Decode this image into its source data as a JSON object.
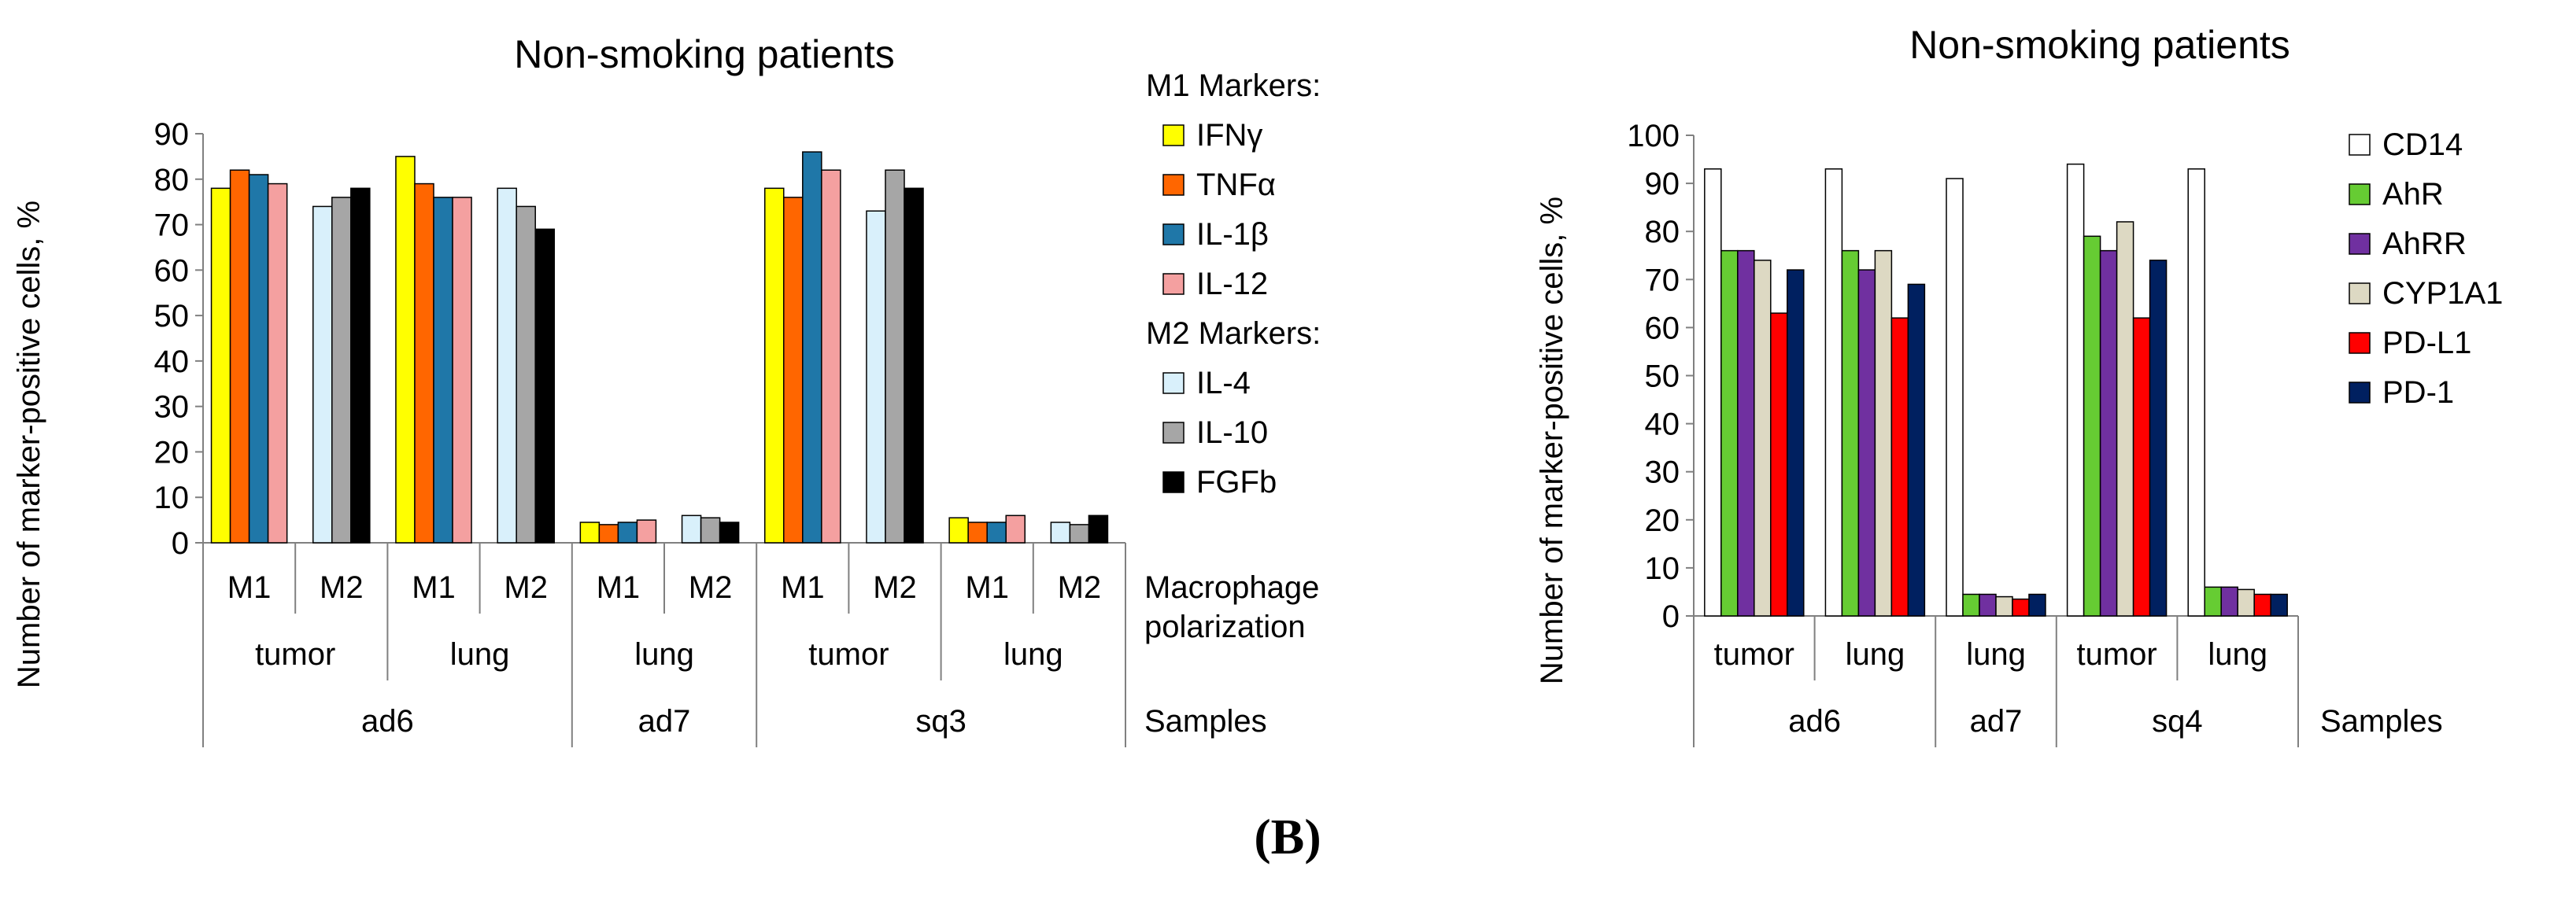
{
  "panel_label": "(B)",
  "chart_data": [
    {
      "type": "bar",
      "title": "Non-smoking patients",
      "ylabel": "Number of marker-positive cells, %",
      "ylim": [
        0,
        90
      ],
      "yticks": [
        0,
        10,
        20,
        30,
        40,
        50,
        60,
        70,
        80,
        90
      ],
      "legend_sections": [
        {
          "header": "M1 Markers:",
          "items": [
            "IFNγ",
            "TNFα",
            "IL-1β",
            "IL-12"
          ]
        },
        {
          "header": "M2 Markers:",
          "items": [
            "IL-4",
            "IL-10",
            "FGFb"
          ]
        }
      ],
      "colors": {
        "IFNγ": "#ffff00",
        "TNFα": "#ff6600",
        "IL-1β": "#1f77a8",
        "IL-12": "#f4a0a0",
        "IL-4": "#d9f0fb",
        "IL-10": "#a6a6a6",
        "FGFb": "#000000"
      },
      "axis_level_labels": [
        "Macrophage",
        "polarization",
        "Samples"
      ],
      "samples": [
        {
          "name": "ad6",
          "tissues": [
            {
              "name": "tumor",
              "groups": [
                {
                  "label": "M1",
                  "series": [
                    "IFNγ",
                    "TNFα",
                    "IL-1β",
                    "IL-12"
                  ],
                  "values": [
                    78,
                    82,
                    81,
                    79
                  ]
                },
                {
                  "label": "M2",
                  "series": [
                    "IL-4",
                    "IL-10",
                    "FGFb"
                  ],
                  "values": [
                    74,
                    76,
                    78
                  ]
                }
              ]
            },
            {
              "name": "lung",
              "groups": [
                {
                  "label": "M1",
                  "series": [
                    "IFNγ",
                    "TNFα",
                    "IL-1β",
                    "IL-12"
                  ],
                  "values": [
                    85,
                    79,
                    76,
                    76
                  ]
                },
                {
                  "label": "M2",
                  "series": [
                    "IL-4",
                    "IL-10",
                    "FGFb"
                  ],
                  "values": [
                    78,
                    74,
                    69
                  ]
                }
              ]
            }
          ]
        },
        {
          "name": "ad7",
          "tissues": [
            {
              "name": "lung",
              "groups": [
                {
                  "label": "M1",
                  "series": [
                    "IFNγ",
                    "TNFα",
                    "IL-1β",
                    "IL-12"
                  ],
                  "values": [
                    4.5,
                    4,
                    4.5,
                    5
                  ]
                },
                {
                  "label": "M2",
                  "series": [
                    "IL-4",
                    "IL-10",
                    "FGFb"
                  ],
                  "values": [
                    6,
                    5.5,
                    4.5
                  ]
                }
              ]
            }
          ]
        },
        {
          "name": "sq3",
          "tissues": [
            {
              "name": "tumor",
              "groups": [
                {
                  "label": "M1",
                  "series": [
                    "IFNγ",
                    "TNFα",
                    "IL-1β",
                    "IL-12"
                  ],
                  "values": [
                    78,
                    76,
                    86,
                    82
                  ]
                },
                {
                  "label": "M2",
                  "series": [
                    "IL-4",
                    "IL-10",
                    "FGFb"
                  ],
                  "values": [
                    73,
                    82,
                    78
                  ]
                }
              ]
            },
            {
              "name": "lung",
              "groups": [
                {
                  "label": "M1",
                  "series": [
                    "IFNγ",
                    "TNFα",
                    "IL-1β",
                    "IL-12"
                  ],
                  "values": [
                    5.5,
                    4.5,
                    4.5,
                    6
                  ]
                },
                {
                  "label": "M2",
                  "series": [
                    "IL-4",
                    "IL-10",
                    "FGFb"
                  ],
                  "values": [
                    4.5,
                    4,
                    6
                  ]
                }
              ]
            }
          ]
        }
      ]
    },
    {
      "type": "bar",
      "title": "Non-smoking patients",
      "ylabel": "Number of marker-positive cells, %",
      "ylim": [
        0,
        100
      ],
      "yticks": [
        0,
        10,
        20,
        30,
        40,
        50,
        60,
        70,
        80,
        90,
        100
      ],
      "legend_sections": [
        {
          "header": "",
          "items": [
            "CD14",
            "AhR",
            "AhRR",
            "CYP1A1",
            "PD-L1",
            "PD-1"
          ]
        }
      ],
      "colors": {
        "CD14": "#ffffff",
        "AhR": "#66cc33",
        "AhRR": "#7030a0",
        "CYP1A1": "#ddd9c3",
        "PD-L1": "#ff0000",
        "PD-1": "#002060"
      },
      "axis_level_labels": [
        "Samples"
      ],
      "samples": [
        {
          "name": "ad6",
          "tissues": [
            {
              "name": "tumor",
              "groups": [
                {
                  "label": "",
                  "series": [
                    "CD14",
                    "AhR",
                    "AhRR",
                    "CYP1A1",
                    "PD-L1",
                    "PD-1"
                  ],
                  "values": [
                    93,
                    76,
                    76,
                    74,
                    63,
                    72
                  ]
                }
              ]
            },
            {
              "name": "lung",
              "groups": [
                {
                  "label": "",
                  "series": [
                    "CD14",
                    "AhR",
                    "AhRR",
                    "CYP1A1",
                    "PD-L1",
                    "PD-1"
                  ],
                  "values": [
                    93,
                    76,
                    72,
                    76,
                    62,
                    69
                  ]
                }
              ]
            }
          ]
        },
        {
          "name": "ad7",
          "tissues": [
            {
              "name": "lung",
              "groups": [
                {
                  "label": "",
                  "series": [
                    "CD14",
                    "AhR",
                    "AhRR",
                    "CYP1A1",
                    "PD-L1",
                    "PD-1"
                  ],
                  "values": [
                    91,
                    4.5,
                    4.5,
                    4,
                    3.5,
                    4.5
                  ]
                }
              ]
            }
          ]
        },
        {
          "name": "sq4",
          "tissues": [
            {
              "name": "tumor",
              "groups": [
                {
                  "label": "",
                  "series": [
                    "CD14",
                    "AhR",
                    "AhRR",
                    "CYP1A1",
                    "PD-L1",
                    "PD-1"
                  ],
                  "values": [
                    94,
                    79,
                    76,
                    82,
                    62,
                    74
                  ]
                }
              ]
            },
            {
              "name": "lung",
              "groups": [
                {
                  "label": "",
                  "series": [
                    "CD14",
                    "AhR",
                    "AhRR",
                    "CYP1A1",
                    "PD-L1",
                    "PD-1"
                  ],
                  "values": [
                    93,
                    6,
                    6,
                    5.5,
                    4.5,
                    4.5
                  ]
                }
              ]
            }
          ]
        }
      ]
    }
  ]
}
